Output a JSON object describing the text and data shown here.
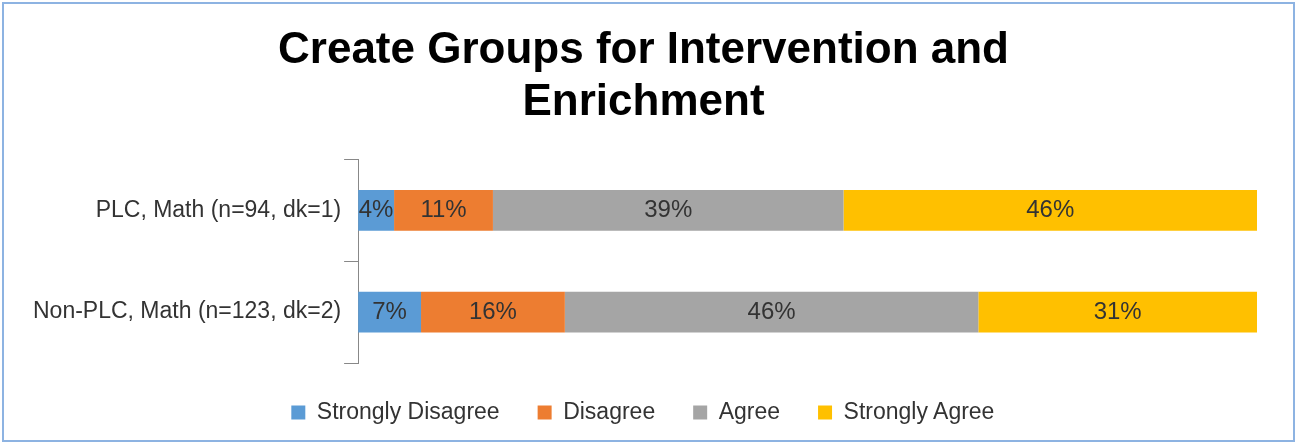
{
  "chart_data": {
    "type": "bar",
    "orientation": "horizontal",
    "stacked": true,
    "title": "Create Groups for Intervention and Enrichment",
    "categories": [
      "PLC, Math (n=94, dk=1)",
      "Non-PLC, Math (n=123, dk=2)"
    ],
    "series": [
      {
        "name": "Strongly Disagree",
        "color": "#5b9bd5",
        "values": [
          4,
          7
        ],
        "value_labels": [
          "4%",
          "7%"
        ]
      },
      {
        "name": "Disagree",
        "color": "#ed7d31",
        "values": [
          11,
          16
        ],
        "value_labels": [
          "11%",
          "16%"
        ]
      },
      {
        "name": "Agree",
        "color": "#a5a5a5",
        "values": [
          39,
          46
        ],
        "value_labels": [
          "39%",
          "46%"
        ]
      },
      {
        "name": "Strongly Agree",
        "color": "#ffc000",
        "values": [
          46,
          31
        ],
        "value_labels": [
          "46%",
          "31%"
        ]
      }
    ],
    "legend": "bottom"
  }
}
